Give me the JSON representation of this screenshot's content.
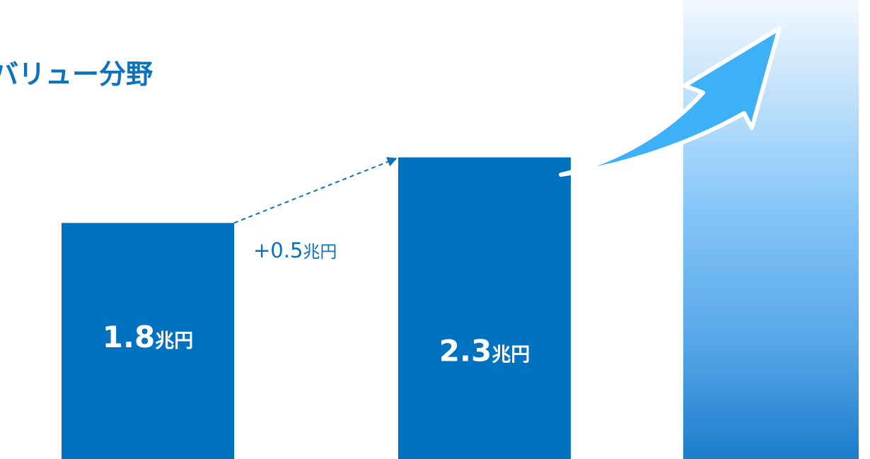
{
  "chart_data": {
    "type": "bar",
    "title": "バリュー分野",
    "unit": "兆円",
    "categories": [
      "",
      "",
      ""
    ],
    "values": [
      1.8,
      2.3,
      null
    ],
    "value_labels": [
      "1.8",
      "2.3",
      ""
    ],
    "series": [
      {
        "values": [
          1.8,
          2.3,
          null
        ]
      }
    ],
    "ylim": [
      0,
      3.5
    ],
    "grid": false,
    "legend": "none",
    "annotations": {
      "delta": {
        "num": "+0.5",
        "unit": "兆円"
      }
    },
    "colors": {
      "bar": "#0072BF",
      "title": "#0B72BD",
      "arrow": "#3DB0F7",
      "future_top": "#F2F8FE",
      "future_bottom": "#1C7DCB"
    }
  }
}
